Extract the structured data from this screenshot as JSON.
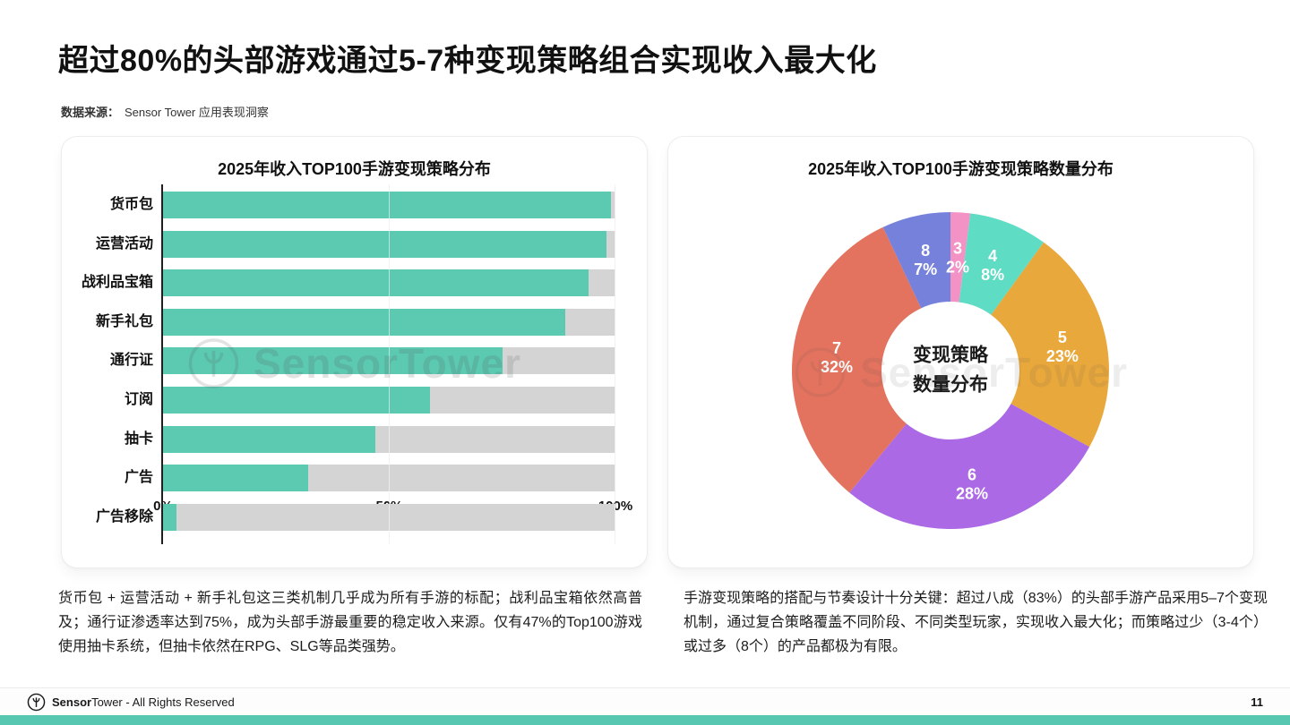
{
  "page": {
    "title": "超过80%的头部游戏通过5-7种变现策略组合实现收入最大化",
    "source_label": "数据来源：",
    "source_value": "Sensor Tower 应用表现洞察",
    "watermark_text": "SensorTower",
    "page_number": "11"
  },
  "colors": {
    "bar_teal": "#5cc9b1",
    "bar_track": "#d4d4d4",
    "bottom_bar_teal": "#57c7b1"
  },
  "chart_data": [
    {
      "type": "bar",
      "orientation": "horizontal",
      "title": "2025年收入TOP100手游变现策略分布",
      "categories": [
        "货币包",
        "运营活动",
        "战利品宝箱",
        "新手礼包",
        "通行证",
        "订阅",
        "抽卡",
        "广告",
        "广告移除"
      ],
      "values": [
        99,
        98,
        94,
        89,
        75,
        59,
        47,
        32,
        3
      ],
      "unit": "%",
      "xlim": [
        0,
        100
      ],
      "xticks": [
        "0%",
        "50%",
        "100%"
      ],
      "grid": "vertical",
      "bar_color": "#5cc9b1",
      "track_color": "#d4d4d4"
    },
    {
      "type": "pie",
      "subtype": "donut",
      "title": "2025年收入TOP100手游变现策略数量分布",
      "center_label_lines": [
        "变现策略",
        "数量分布"
      ],
      "start_angle_deg": 0,
      "direction": "clockwise",
      "segments": [
        {
          "label": "3",
          "value": 2,
          "color": "#f392c5"
        },
        {
          "label": "4",
          "value": 8,
          "color": "#5edcc4"
        },
        {
          "label": "5",
          "value": 23,
          "color": "#e9a83c"
        },
        {
          "label": "6",
          "value": 28,
          "color": "#ab69e5"
        },
        {
          "label": "7",
          "value": 32,
          "color": "#e3735e"
        },
        {
          "label": "8",
          "value": 7,
          "color": "#7681db"
        }
      ]
    }
  ],
  "notes": {
    "left": "货币包 + 运营活动 + 新手礼包这三类机制几乎成为所有手游的标配；战利品宝箱依然高普及；通行证渗透率达到75%，成为头部手游最重要的稳定收入来源。仅有47%的Top100游戏使用抽卡系统，但抽卡依然在RPG、SLG等品类强势。",
    "right": "手游变现策略的搭配与节奏设计十分关键：超过八成（83%）的头部手游产品采用5–7个变现机制，通过复合策略覆盖不同阶段、不同类型玩家，实现收入最大化；而策略过少（3-4个）或过多（8个）的产品都极为有限。"
  },
  "footer": {
    "brand_bold": "Sensor",
    "brand_regular": "Tower",
    "rights": "- All Rights Reserved"
  }
}
